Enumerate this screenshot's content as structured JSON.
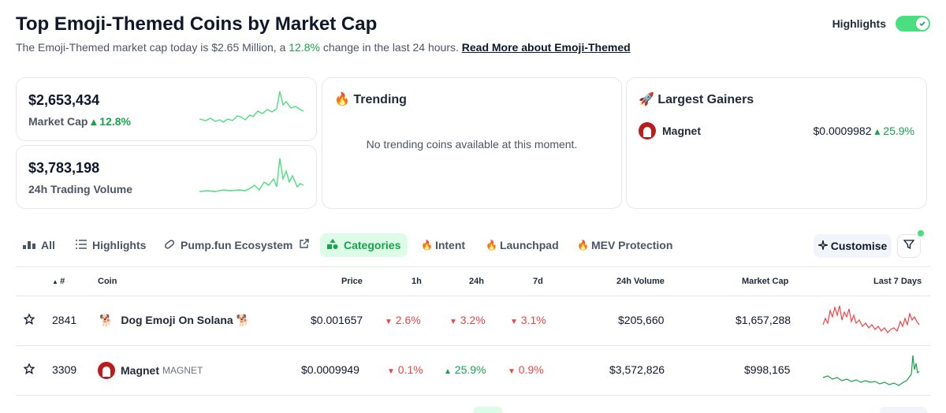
{
  "header": {
    "title": "Top Emoji-Themed Coins by Market Cap",
    "subtitle_prefix": "The Emoji-Themed market cap today is $2.65 Million, a",
    "subtitle_change": "12.8%",
    "subtitle_suffix": "change in the last 24 hours.",
    "read_more": "Read More about Emoji-Themed"
  },
  "highlights_toggle": {
    "label": "Highlights",
    "enabled": true
  },
  "stats": {
    "market_cap": {
      "value": "$2,653,434",
      "label": "Market Cap",
      "change": "12.8%"
    },
    "volume": {
      "value": "$3,783,198",
      "label": "24h Trading Volume"
    }
  },
  "trending": {
    "icon": "🔥",
    "title": "Trending",
    "empty_message": "No trending coins available at this moment."
  },
  "gainers": {
    "icon": "🚀",
    "title": "Largest Gainers",
    "items": [
      {
        "name": "Magnet",
        "price": "$0.0009982",
        "change": "25.9%"
      }
    ]
  },
  "tabs": [
    {
      "label": "All",
      "icon": "bar-chart-icon"
    },
    {
      "label": "Highlights",
      "icon": "list-icon"
    },
    {
      "label": "Pump.fun Ecosystem",
      "icon": "pill-icon"
    },
    {
      "label": "Categories",
      "icon": "shapes-icon",
      "active": true
    },
    {
      "label": "Intent",
      "icon": "fire-icon"
    },
    {
      "label": "Launchpad",
      "icon": "fire-icon"
    },
    {
      "label": "MEV Protection",
      "icon": "fire-icon"
    }
  ],
  "customise_label": "Customise",
  "table": {
    "headers": {
      "rank": "#",
      "coin": "Coin",
      "price": "Price",
      "h1": "1h",
      "h24": "24h",
      "d7": "7d",
      "volume": "24h Volume",
      "mcap": "Market Cap",
      "last7": "Last 7 Days"
    },
    "rows": [
      {
        "rank": "2841",
        "name": "Dog Emoji On Solana",
        "emoji": "🐕",
        "symbol": "",
        "price": "$0.001657",
        "h1": "2.6%",
        "h1_dir": "down",
        "h24": "3.2%",
        "h24_dir": "down",
        "d7": "3.1%",
        "d7_dir": "down",
        "volume": "$205,660",
        "mcap": "$1,657,288",
        "spark_color": "#ef4444"
      },
      {
        "rank": "3309",
        "name": "Magnet",
        "emoji": "",
        "symbol": "MAGNET",
        "price": "$0.0009949",
        "h1": "0.1%",
        "h1_dir": "down",
        "h24": "25.9%",
        "h24_dir": "up",
        "d7": "0.9%",
        "d7_dir": "down",
        "volume": "$3,572,826",
        "mcap": "$998,165",
        "spark_color": "#16a34a"
      }
    ]
  },
  "colors": {
    "accent_green": "#16a34a",
    "down_red": "#ef4444",
    "toggle_green": "#4ade80"
  }
}
